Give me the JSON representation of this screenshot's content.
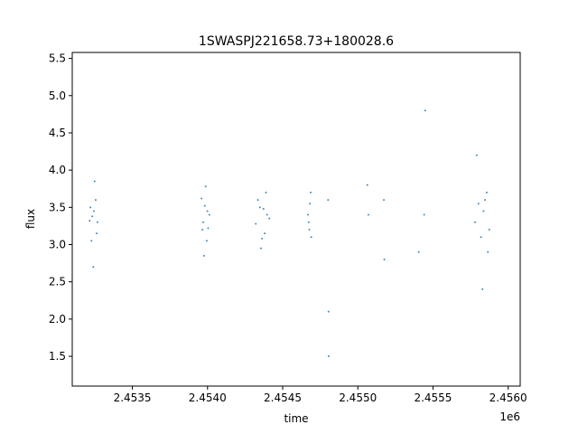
{
  "chart_data": {
    "type": "scatter",
    "title": "1SWASPJ221658.73+180028.6",
    "xlabel": "time",
    "ylabel": "flux",
    "x_offset_label": "1e6",
    "xlim": [
      2453100,
      2456080
    ],
    "ylim": [
      1.1,
      5.58
    ],
    "xticks": [
      2453500,
      2454000,
      2454500,
      2455000,
      2455500,
      2456000
    ],
    "xtick_labels": [
      "2.4535",
      "2.4540",
      "2.4545",
      "2.4550",
      "2.4555",
      "2.4560"
    ],
    "yticks": [
      1.5,
      2.0,
      2.5,
      3.0,
      3.5,
      4.0,
      4.5,
      5.0,
      5.5
    ],
    "ytick_labels": [
      "1.5",
      "2.0",
      "2.5",
      "3.0",
      "3.5",
      "4.0",
      "4.5",
      "5.0",
      "5.5"
    ],
    "grid": false,
    "marker_color": "#1f77b4",
    "series": [
      {
        "name": "",
        "x": [
          2453216,
          2453244,
          2453268,
          2453228,
          2453256,
          2453240,
          2453221,
          2453262,
          2453249,
          2453233,
          2453971,
          2453982,
          2454004,
          2453960,
          2453995,
          2453988,
          2453976,
          2454012,
          2453966,
          2453999,
          2454321,
          2454348,
          2454380,
          2454396,
          2454335,
          2454362,
          2454411,
          2454389,
          2454355,
          2454372,
          2454673,
          2454681,
          2454690,
          2454668,
          2454686,
          2454677,
          2454802,
          2454805,
          2454806,
          2455063,
          2455070,
          2455173,
          2455176,
          2455441,
          2455448,
          2455405,
          2455780,
          2455802,
          2455819,
          2455836,
          2455857,
          2455874,
          2455791,
          2455829,
          2455846,
          2455865
        ],
        "y": [
          3.32,
          3.45,
          3.3,
          3.05,
          3.6,
          2.7,
          3.5,
          3.15,
          3.85,
          3.38,
          3.3,
          3.52,
          3.22,
          3.62,
          3.05,
          3.78,
          2.85,
          3.4,
          3.2,
          3.45,
          3.28,
          3.5,
          3.15,
          3.4,
          3.6,
          3.08,
          3.35,
          3.7,
          2.95,
          3.48,
          3.3,
          3.55,
          3.1,
          3.4,
          3.7,
          3.2,
          3.6,
          2.1,
          1.5,
          3.8,
          3.4,
          3.6,
          2.8,
          3.4,
          4.8,
          2.9,
          3.3,
          3.55,
          3.1,
          3.45,
          3.7,
          3.2,
          4.2,
          2.4,
          3.6,
          2.9
        ]
      }
    ]
  }
}
